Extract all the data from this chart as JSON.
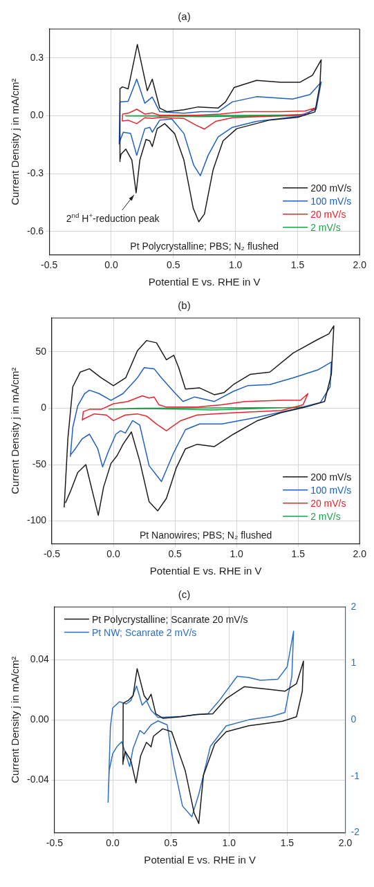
{
  "chart_data": [
    {
      "type": "line",
      "title": "(a)",
      "xlabel": "Potential E vs. RHE in V",
      "ylabel": "Current Density j in mA/cm²",
      "xlim": [
        -0.5,
        2.0
      ],
      "xticks": [
        {
          "value": -0.5,
          "label": "-0.5"
        },
        {
          "value": 0,
          "label": "0.0"
        },
        {
          "value": 0.5,
          "label": "0.5"
        },
        {
          "value": 1,
          "label": "1.0"
        },
        {
          "value": 1.5,
          "label": "1.5"
        },
        {
          "value": 2,
          "label": "2.0"
        }
      ],
      "ylim": [
        -0.72,
        0.45
      ],
      "yticks": [
        {
          "value": -0.6,
          "label": "-0.6"
        },
        {
          "value": -0.3,
          "label": "-0.3"
        },
        {
          "value": 0,
          "label": "0.0"
        },
        {
          "value": 0.3,
          "label": "0.3"
        }
      ],
      "grid": true,
      "legend": "bottom right",
      "annotations": [
        {
          "text": "2$^{nd}$ H$^{+}$-reduction peak",
          "x": 0.2,
          "y": -0.4
        },
        "Pt Polycrystalline; PBS; N₂ flushed"
      ],
      "series": [
        {
          "name": "200 mV/s",
          "color": "#1a1a1a",
          "x": [
            0.07,
            0.07,
            0.09,
            0.136,
            0.21,
            0.29,
            0.33,
            0.39,
            0.45,
            0.585,
            0.7,
            0.86,
            0.92,
            0.99,
            1.17,
            1.365,
            1.52,
            1.62,
            1.69,
            1.68,
            1.64,
            1.5,
            1.27,
            1.01,
            0.9,
            0.82,
            0.75,
            0.705,
            0.66,
            0.585,
            0.51,
            0.43,
            0.37,
            0.33,
            0.31,
            0.28,
            0.23,
            0.2,
            0.166,
            0.117,
            0.078,
            0.072
          ],
          "values": [
            -0.24,
            0.14,
            0.15,
            0.14,
            0.37,
            0.13,
            0.19,
            0.04,
            0.021,
            0.031,
            0.046,
            0.04,
            0.072,
            0.147,
            0.184,
            0.174,
            0.174,
            0.21,
            0.29,
            0.16,
            0.02,
            -0.008,
            -0.023,
            -0.067,
            -0.13,
            -0.28,
            -0.51,
            -0.55,
            -0.48,
            -0.23,
            -0.092,
            -0.041,
            -0.067,
            -0.16,
            -0.13,
            -0.123,
            -0.23,
            -0.4,
            -0.23,
            -0.173,
            -0.2,
            -0.225
          ]
        },
        {
          "name": "100 mV/s",
          "color": "#1f5fbf",
          "x": [
            0.064,
            0.07,
            0.136,
            0.205,
            0.27,
            0.33,
            0.39,
            0.585,
            0.72,
            0.86,
            0.975,
            1.17,
            1.46,
            1.6,
            1.69,
            1.65,
            1.5,
            1.17,
            0.975,
            0.86,
            0.78,
            0.717,
            0.663,
            0.585,
            0.487,
            0.39,
            0.33,
            0.31,
            0.27,
            0.205,
            0.156,
            0.097,
            0.066
          ],
          "values": [
            -0.148,
            0.072,
            0.075,
            0.19,
            0.065,
            0.097,
            0.021,
            0.013,
            0.021,
            0.021,
            0.072,
            0.099,
            0.087,
            0.11,
            0.175,
            0.034,
            -0.004,
            -0.029,
            -0.06,
            -0.11,
            -0.205,
            -0.311,
            -0.255,
            -0.092,
            -0.016,
            -0.023,
            -0.085,
            -0.06,
            -0.067,
            -0.205,
            -0.092,
            -0.085,
            -0.135
          ]
        },
        {
          "name": "20 mV/s",
          "color": "#e8232a",
          "x": [
            0.088,
            0.092,
            0.136,
            0.205,
            0.27,
            0.33,
            0.39,
            0.68,
            0.877,
            1.07,
            1.365,
            1.56,
            1.64,
            1.58,
            1.365,
            0.975,
            0.84,
            0.75,
            0.68,
            0.585,
            0.39,
            0.33,
            0.27,
            0.205,
            0.136,
            0.092
          ],
          "values": [
            -0.029,
            0.009,
            0.013,
            0.034,
            0.009,
            0.015,
            0.003,
            0.003,
            0.009,
            0.021,
            0.021,
            0.025,
            0.04,
            0.009,
            0,
            -0.01,
            -0.029,
            -0.069,
            -0.048,
            -0.014,
            -0.008,
            -0.014,
            -0.01,
            -0.041,
            -0.023,
            -0.027
          ]
        },
        {
          "name": "2 mV/s",
          "color": "#1fa04a",
          "x": [
            0.11,
            0.5,
            1.0,
            1.5,
            1.52,
            1.0,
            0.72,
            0.4,
            0.12
          ],
          "values": [
            0,
            0.001,
            0.002,
            0.004,
            0,
            -0.003,
            -0.005,
            -0.002,
            -0.001
          ]
        }
      ]
    },
    {
      "type": "line",
      "title": "(b)",
      "xlabel": "Potential E vs. RHE in V",
      "ylabel": "Current Density j in mA/cm²",
      "xlim": [
        -0.5,
        2.0
      ],
      "xticks": [
        {
          "value": -0.5,
          "label": "-0.5"
        },
        {
          "value": 0,
          "label": "0.0"
        },
        {
          "value": 0.5,
          "label": "0.5"
        },
        {
          "value": 1,
          "label": "1.0"
        },
        {
          "value": 1.5,
          "label": "1.5"
        },
        {
          "value": 2,
          "label": "2.0"
        }
      ],
      "ylim": [
        -120,
        80
      ],
      "yticks": [
        -100,
        -50,
        0,
        50
      ],
      "grid": true,
      "legend": "bottom right",
      "annotations": [
        "Pt Nanowires; PBS; N₂ flushed"
      ],
      "series": [
        {
          "name": "200 mV/s",
          "color": "#1a1a1a",
          "x": [
            -0.4,
            -0.37,
            -0.33,
            -0.27,
            -0.195,
            -0.1,
            0.0,
            0.1,
            0.195,
            0.27,
            0.35,
            0.43,
            0.49,
            0.53,
            0.585,
            0.7,
            0.82,
            0.9,
            0.975,
            1.11,
            1.27,
            1.46,
            1.66,
            1.75,
            1.79,
            1.77,
            1.715,
            1.56,
            1.36,
            1.17,
            0.975,
            0.82,
            0.68,
            0.585,
            0.51,
            0.43,
            0.36,
            0.29,
            0.214,
            0.146,
            0.078,
            0.03,
            -0.02,
            -0.08,
            -0.123,
            -0.166,
            -0.224,
            -0.29,
            -0.35,
            -0.39
          ],
          "values": [
            -88,
            -27,
            19,
            32,
            35,
            27,
            20,
            27,
            51,
            60,
            58,
            43,
            47,
            36,
            17,
            18,
            12,
            14,
            21,
            30,
            32,
            49,
            61,
            66,
            73,
            30,
            6,
            1,
            -4,
            -11,
            -23,
            -34,
            -32,
            -36,
            -53,
            -80,
            -91,
            -83,
            -47,
            -21,
            -32,
            -42,
            -49,
            -70,
            -95,
            -76,
            -50,
            -57,
            -74,
            -84
          ]
        },
        {
          "name": "100 mV/s",
          "color": "#1f5fbf",
          "x": [
            -0.35,
            -0.33,
            -0.29,
            -0.234,
            -0.195,
            -0.117,
            -0.02,
            0.078,
            0.195,
            0.25,
            0.33,
            0.39,
            0.487,
            0.565,
            0.66,
            0.82,
            0.975,
            1.09,
            1.27,
            1.46,
            1.66,
            1.77,
            1.76,
            1.68,
            1.46,
            1.17,
            0.88,
            0.7,
            0.585,
            0.487,
            0.39,
            0.29,
            0.214,
            0.156,
            0.097,
            0.058,
            0.02,
            -0.04,
            -0.088,
            -0.127,
            -0.195,
            -0.253,
            -0.31,
            -0.345
          ],
          "values": [
            -43,
            -17,
            2,
            13,
            16,
            13,
            7,
            13,
            27,
            36,
            35,
            27,
            15,
            6,
            10,
            6,
            15,
            20,
            21,
            27,
            34,
            41,
            19,
            5,
            -1,
            -8,
            -14,
            -14,
            -19,
            -40,
            -65,
            -51,
            -15,
            -11,
            -22,
            -20,
            -23,
            -38,
            -52,
            -36,
            -23,
            -27,
            -36,
            -41
          ]
        },
        {
          "name": "20 mV/s",
          "color": "#e8232a",
          "x": [
            -0.253,
            -0.245,
            -0.195,
            -0.1,
            0.0,
            0.117,
            0.234,
            0.29,
            0.33,
            0.37,
            0.43,
            0.68,
            0.877,
            1.07,
            1.365,
            1.52,
            1.58,
            1.54,
            1.365,
            0.975,
            0.68,
            0.546,
            0.43,
            0.35,
            0.27,
            0.195,
            0.097,
            0.0,
            -0.058,
            -0.156,
            -0.25
          ],
          "values": [
            -11,
            -3,
            -1,
            -1,
            4,
            6,
            11,
            9,
            10,
            3,
            1,
            1,
            3,
            6,
            7,
            7,
            13,
            3,
            -2,
            -4,
            -6,
            -11,
            -20,
            -14,
            -7,
            -5,
            -6,
            -11,
            -6,
            -5,
            -10
          ]
        },
        {
          "name": "2 mV/s",
          "color": "#1fa04a",
          "x": [
            -0.04,
            0.2,
            0.8,
            1.5,
            1.54,
            1.3,
            0.8,
            0.6,
            0.2,
            -0.03
          ],
          "values": [
            -1,
            0,
            0.3,
            0.6,
            1,
            0.2,
            -1.5,
            -1,
            -0.3,
            -0.9
          ]
        }
      ]
    },
    {
      "type": "line",
      "title": "(c)",
      "xlabel": "Potential E vs. RHE in V",
      "ylabel": "Current Density j in mA/cm²",
      "xlim": [
        -0.5,
        2.0
      ],
      "xticks": [
        {
          "value": -0.5,
          "label": "-0.5"
        },
        {
          "value": 0,
          "label": "0.0"
        },
        {
          "value": 0.5,
          "label": "0.5"
        },
        {
          "value": 1,
          "label": "1.0"
        },
        {
          "value": 1.5,
          "label": "1.5"
        },
        {
          "value": 2,
          "label": "2.0"
        }
      ],
      "ylim": [
        -0.075,
        0.075
      ],
      "yticks": [
        {
          "value": -0.04,
          "label": "-0.04"
        },
        {
          "value": 0,
          "label": "0.00"
        },
        {
          "value": 0.04,
          "label": "0.04"
        }
      ],
      "y2lim": [
        -2,
        2
      ],
      "y2ticks": [
        -2,
        -1,
        0,
        1,
        2
      ],
      "grid": true,
      "legend": "top left",
      "series": [
        {
          "name": "Pt Polycrystalline; Scanrate 20 mV/s",
          "color": "#1a1a1a",
          "x": [
            0.088,
            0.09,
            0.136,
            0.175,
            0.21,
            0.27,
            0.3,
            0.33,
            0.37,
            0.43,
            0.585,
            0.72,
            0.86,
            0.975,
            1.13,
            1.365,
            1.48,
            1.58,
            1.64,
            1.63,
            1.58,
            1.46,
            1.17,
            0.975,
            0.877,
            0.78,
            0.74,
            0.7,
            0.624,
            0.507,
            0.43,
            0.35,
            0.33,
            0.29,
            0.24,
            0.2,
            0.156,
            0.107,
            0.09
          ],
          "values": [
            -0.03,
            0.011,
            0.013,
            0.016,
            0.034,
            0.016,
            0.013,
            0.017,
            0.004,
            0.001,
            0.002,
            0.0035,
            0.004,
            0.014,
            0.022,
            0.02,
            0.019,
            0.024,
            0.039,
            0.019,
            0.002,
            -0.001,
            -0.004,
            -0.008,
            -0.016,
            -0.037,
            -0.069,
            -0.062,
            -0.034,
            -0.008,
            -0.006,
            -0.011,
            -0.018,
            -0.015,
            -0.024,
            -0.042,
            -0.027,
            -0.021,
            -0.028
          ]
        },
        {
          "name": "Pt NW; Scanrate 2 mV/s",
          "color": "#2f6fbf",
          "axis": "y2",
          "x": [
            -0.04,
            -0.02,
            0.0,
            0.058,
            0.117,
            0.156,
            0.205,
            0.253,
            0.29,
            0.33,
            0.39,
            0.585,
            0.72,
            0.82,
            0.916,
            1.07,
            1.17,
            1.27,
            1.42,
            1.5,
            1.555,
            1.54,
            1.48,
            1.365,
            1.17,
            0.975,
            0.84,
            0.74,
            0.68,
            0.6,
            0.526,
            0.468,
            0.39,
            0.33,
            0.27,
            0.234,
            0.175,
            0.146,
            0.117,
            0.078,
            0.039,
            0.0,
            -0.03,
            -0.038
          ],
          "values": [
            -1.47,
            -0.13,
            0.21,
            0.32,
            0.28,
            0.34,
            0.6,
            0.26,
            0.34,
            0.17,
            0.04,
            0.06,
            0.09,
            0.11,
            0.34,
            0.77,
            0.75,
            0.7,
            0.72,
            0.94,
            1.57,
            0.77,
            0.13,
            0.06,
            0.0,
            -0.11,
            -0.47,
            -1.32,
            -1.72,
            -1.53,
            -0.81,
            -0.09,
            -0.02,
            -0.09,
            -0.25,
            -0.19,
            -0.51,
            -0.83,
            -0.64,
            -0.39,
            -0.47,
            -0.6,
            -0.9,
            -1.35
          ]
        }
      ]
    }
  ]
}
